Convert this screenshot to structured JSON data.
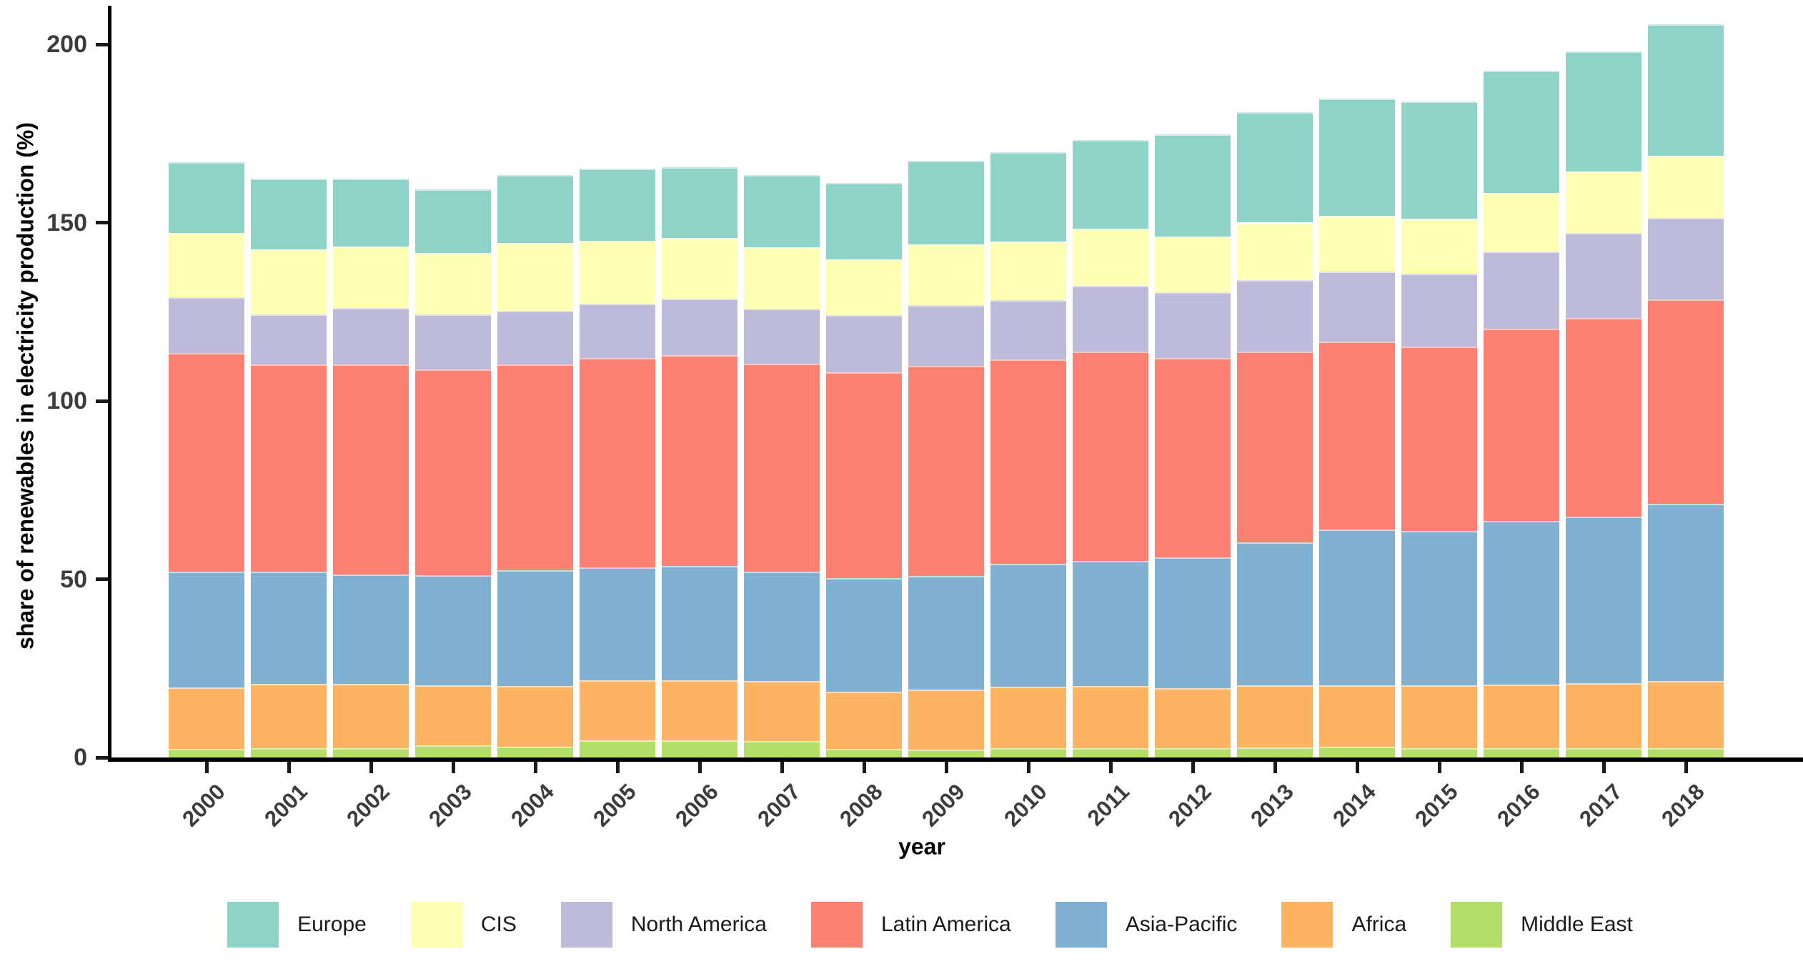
{
  "figure": {
    "y_axis": {
      "title": "share of renewables in electricity production (%)",
      "tick_labels": [
        "0",
        "50",
        "100",
        "150",
        "200"
      ],
      "tick_values": [
        0,
        50,
        100,
        150,
        200
      ]
    },
    "x_axis": {
      "title": "year"
    },
    "text_colors": {
      "tick_label": "#3c3c3c",
      "axis_title": "#000000",
      "legend_label": "#1a1a1a"
    }
  },
  "chart_data": {
    "type": "bar",
    "stacked": true,
    "title": "",
    "xlabel": "year",
    "ylabel": "share of renewables in electricity production (%)",
    "ylim": [
      0,
      210
    ],
    "grid": false,
    "legend_position": "bottom",
    "categories": [
      "2000",
      "2001",
      "2002",
      "2003",
      "2004",
      "2005",
      "2006",
      "2007",
      "2008",
      "2009",
      "2010",
      "2011",
      "2012",
      "2013",
      "2014",
      "2015",
      "2016",
      "2017",
      "2018"
    ],
    "stack_order_bottom_to_top": [
      "Middle East",
      "Africa",
      "Asia-Pacific",
      "Latin America",
      "North America",
      "CIS",
      "Europe"
    ],
    "series": [
      {
        "name": "Europe",
        "color": "#8dd3c7",
        "values": [
          20.0,
          19.9,
          19.1,
          17.8,
          19.0,
          20.3,
          19.9,
          20.2,
          21.4,
          23.5,
          25.0,
          24.9,
          28.7,
          31.0,
          32.7,
          33.0,
          34.2,
          33.6,
          36.9
        ]
      },
      {
        "name": "CIS",
        "color": "#ffffb3",
        "values": [
          17.9,
          18.3,
          17.2,
          17.3,
          19.0,
          17.5,
          17.0,
          17.2,
          15.7,
          17.0,
          16.4,
          16.0,
          15.5,
          16.1,
          15.7,
          15.3,
          16.4,
          17.3,
          17.4
        ]
      },
      {
        "name": "North America",
        "color": "#bebada",
        "values": [
          15.7,
          14.0,
          15.9,
          15.4,
          15.1,
          15.3,
          15.9,
          15.5,
          16.0,
          17.1,
          16.7,
          18.5,
          18.5,
          20.1,
          19.7,
          20.5,
          21.7,
          23.8,
          22.8
        ]
      },
      {
        "name": "Latin America",
        "color": "#fb8072",
        "values": [
          61.3,
          58.1,
          58.8,
          57.6,
          57.6,
          58.7,
          59.0,
          58.3,
          57.6,
          58.9,
          57.3,
          58.7,
          55.9,
          53.5,
          52.7,
          51.7,
          53.9,
          55.7,
          57.4
        ]
      },
      {
        "name": "Asia-Pacific",
        "color": "#80b1d3",
        "values": [
          32.5,
          31.5,
          30.8,
          31.0,
          32.6,
          31.7,
          32.2,
          30.7,
          32.0,
          31.9,
          34.5,
          35.1,
          36.7,
          40.1,
          43.7,
          43.3,
          45.9,
          46.7,
          49.7
        ]
      },
      {
        "name": "Africa",
        "color": "#fdb462",
        "values": [
          17.2,
          18.0,
          18.0,
          16.8,
          17.0,
          16.8,
          16.8,
          16.8,
          16.0,
          16.8,
          17.2,
          17.4,
          16.8,
          17.4,
          17.2,
          17.6,
          17.8,
          18.2,
          18.8
        ]
      },
      {
        "name": "Middle East",
        "color": "#b3de69",
        "values": [
          2.4,
          2.6,
          2.6,
          3.4,
          3.0,
          4.8,
          4.8,
          4.6,
          2.4,
          2.2,
          2.6,
          2.6,
          2.6,
          2.8,
          3.0,
          2.6,
          2.6,
          2.6,
          2.6
        ]
      }
    ],
    "totals": [
      167.0,
      162.4,
      162.4,
      159.3,
      163.3,
      165.1,
      165.6,
      163.3,
      161.1,
      167.4,
      169.7,
      173.2,
      174.7,
      181.0,
      184.7,
      184.0,
      192.5,
      197.9,
      205.6
    ]
  }
}
